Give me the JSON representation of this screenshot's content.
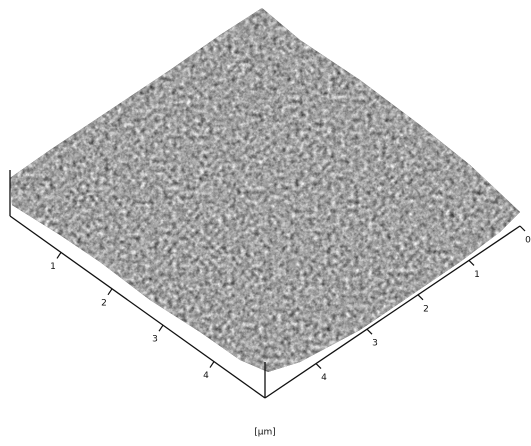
{
  "left_axis": {
    "ticks": [
      1,
      2,
      3,
      4
    ]
  },
  "right_axis": {
    "ticks": [
      0,
      1,
      2,
      3,
      4
    ]
  },
  "unit": "[µm]"
}
